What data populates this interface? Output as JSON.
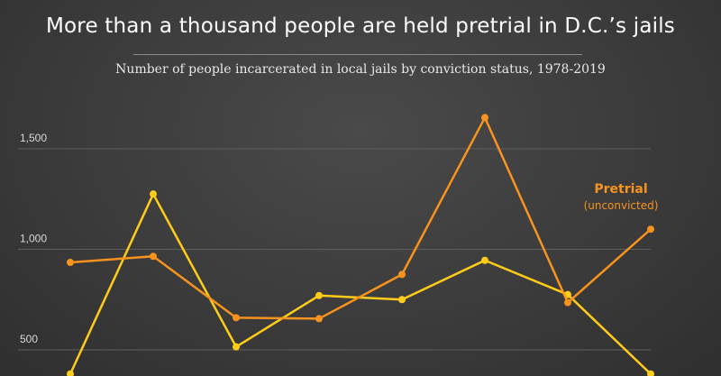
{
  "title": "More than a thousand people are held pretrial in D.C.’s jails",
  "subtitle": "Number of people incarcerated in local jails by conviction status, 1978-2019",
  "colors": {
    "pretrial": "#f7931e",
    "convicted": "#ffcc1a",
    "grid": "#5e5e5e"
  },
  "chart_data": {
    "type": "line",
    "title": "More than a thousand people are held pretrial in D.C.’s jails",
    "subtitle": "Number of people incarcerated in local jails by conviction status, 1978-2019",
    "xlabel": "",
    "ylabel": "",
    "ylim": [
      380,
      1720
    ],
    "y_ticks": [
      {
        "value": 500,
        "label": "500"
      },
      {
        "value": 1000,
        "label": "1,000"
      },
      {
        "value": 1500,
        "label": "1,500"
      }
    ],
    "grid": true,
    "series": [
      {
        "name": "Pretrial",
        "label": "Pretrial",
        "sublabel": "(unconvicted)",
        "color": "#f7931e",
        "values": [
          935,
          965,
          660,
          655,
          875,
          1655,
          735,
          1100
        ]
      },
      {
        "color": "#ffcc1a",
        "values": [
          380,
          1275,
          515,
          770,
          750,
          945,
          775,
          380
        ]
      }
    ]
  }
}
